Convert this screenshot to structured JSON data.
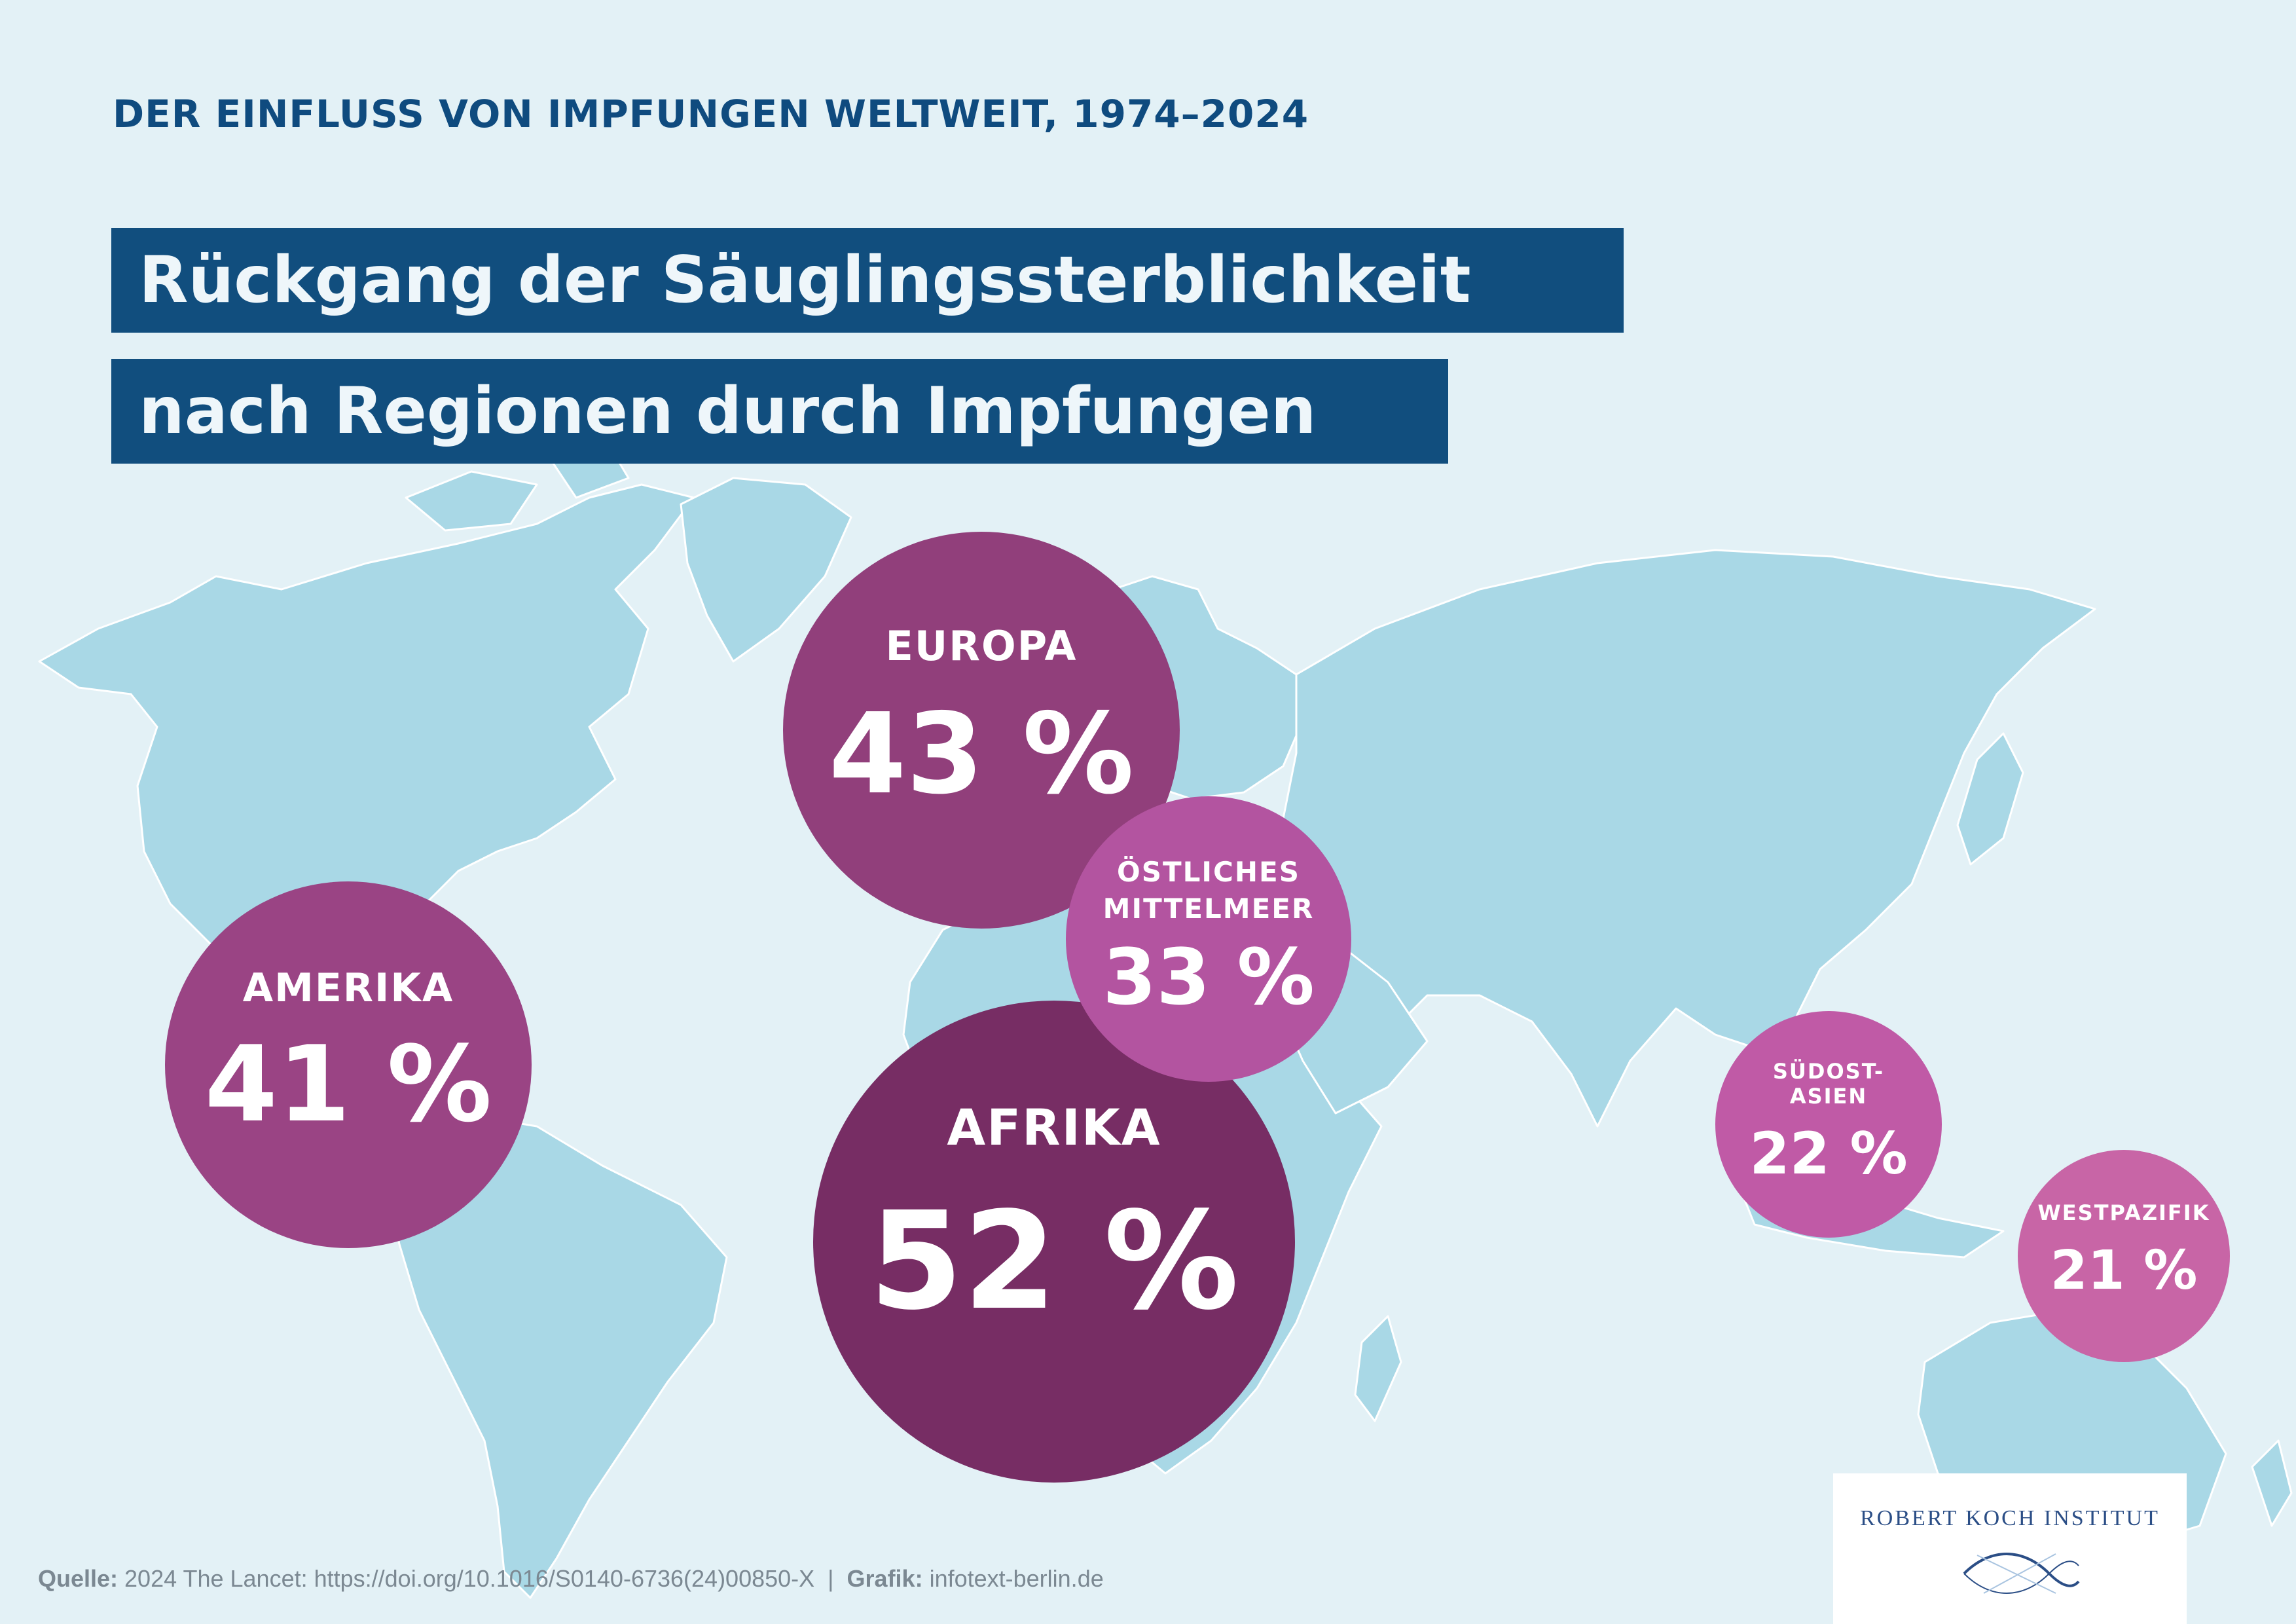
{
  "header": {
    "kicker": "DER EINFLUSS VON IMPFUNGEN WELTWEIT, 1974–2024",
    "title_line_1": "Rückgang der Säuglingssterblichkeit",
    "title_line_2": "nach Regionen durch Impfungen"
  },
  "regions": {
    "europa": {
      "name": "EUROPA",
      "value": "43 %"
    },
    "amerika": {
      "name": "AMERIKA",
      "value": "41 %"
    },
    "afrika": {
      "name": "AFRIKA",
      "value": "52 %"
    },
    "mittelmeer": {
      "name_line_1": "ÖSTLICHES",
      "name_line_2": "MITTELMEER",
      "value": "33 %"
    },
    "suedost": {
      "name_line_1": "SÜDOST-",
      "name_line_2": "ASIEN",
      "value": "22 %"
    },
    "westpazifik": {
      "name": "WESTPAZIFIK",
      "value": "21 %"
    }
  },
  "footer": {
    "source_label": "Quelle:",
    "source_text": " 2024 The Lancet: https://doi.org/10.1016/S0140-6736(24)00850-X  |  ",
    "graphic_label": "Grafik:",
    "graphic_text": " infotext-berlin.de"
  },
  "logo": {
    "text": "ROBERT KOCH INSTITUT"
  },
  "colors": {
    "background": "#e3f1f6",
    "land": "#a9d8e6",
    "title_bar": "#114e7e",
    "europa": "#913f7b",
    "amerika": "#9a4484",
    "afrika": "#772d64",
    "mittelmeer": "#b354a0",
    "suedost": "#c05aa6",
    "westpazifik": "#c865a6"
  }
}
